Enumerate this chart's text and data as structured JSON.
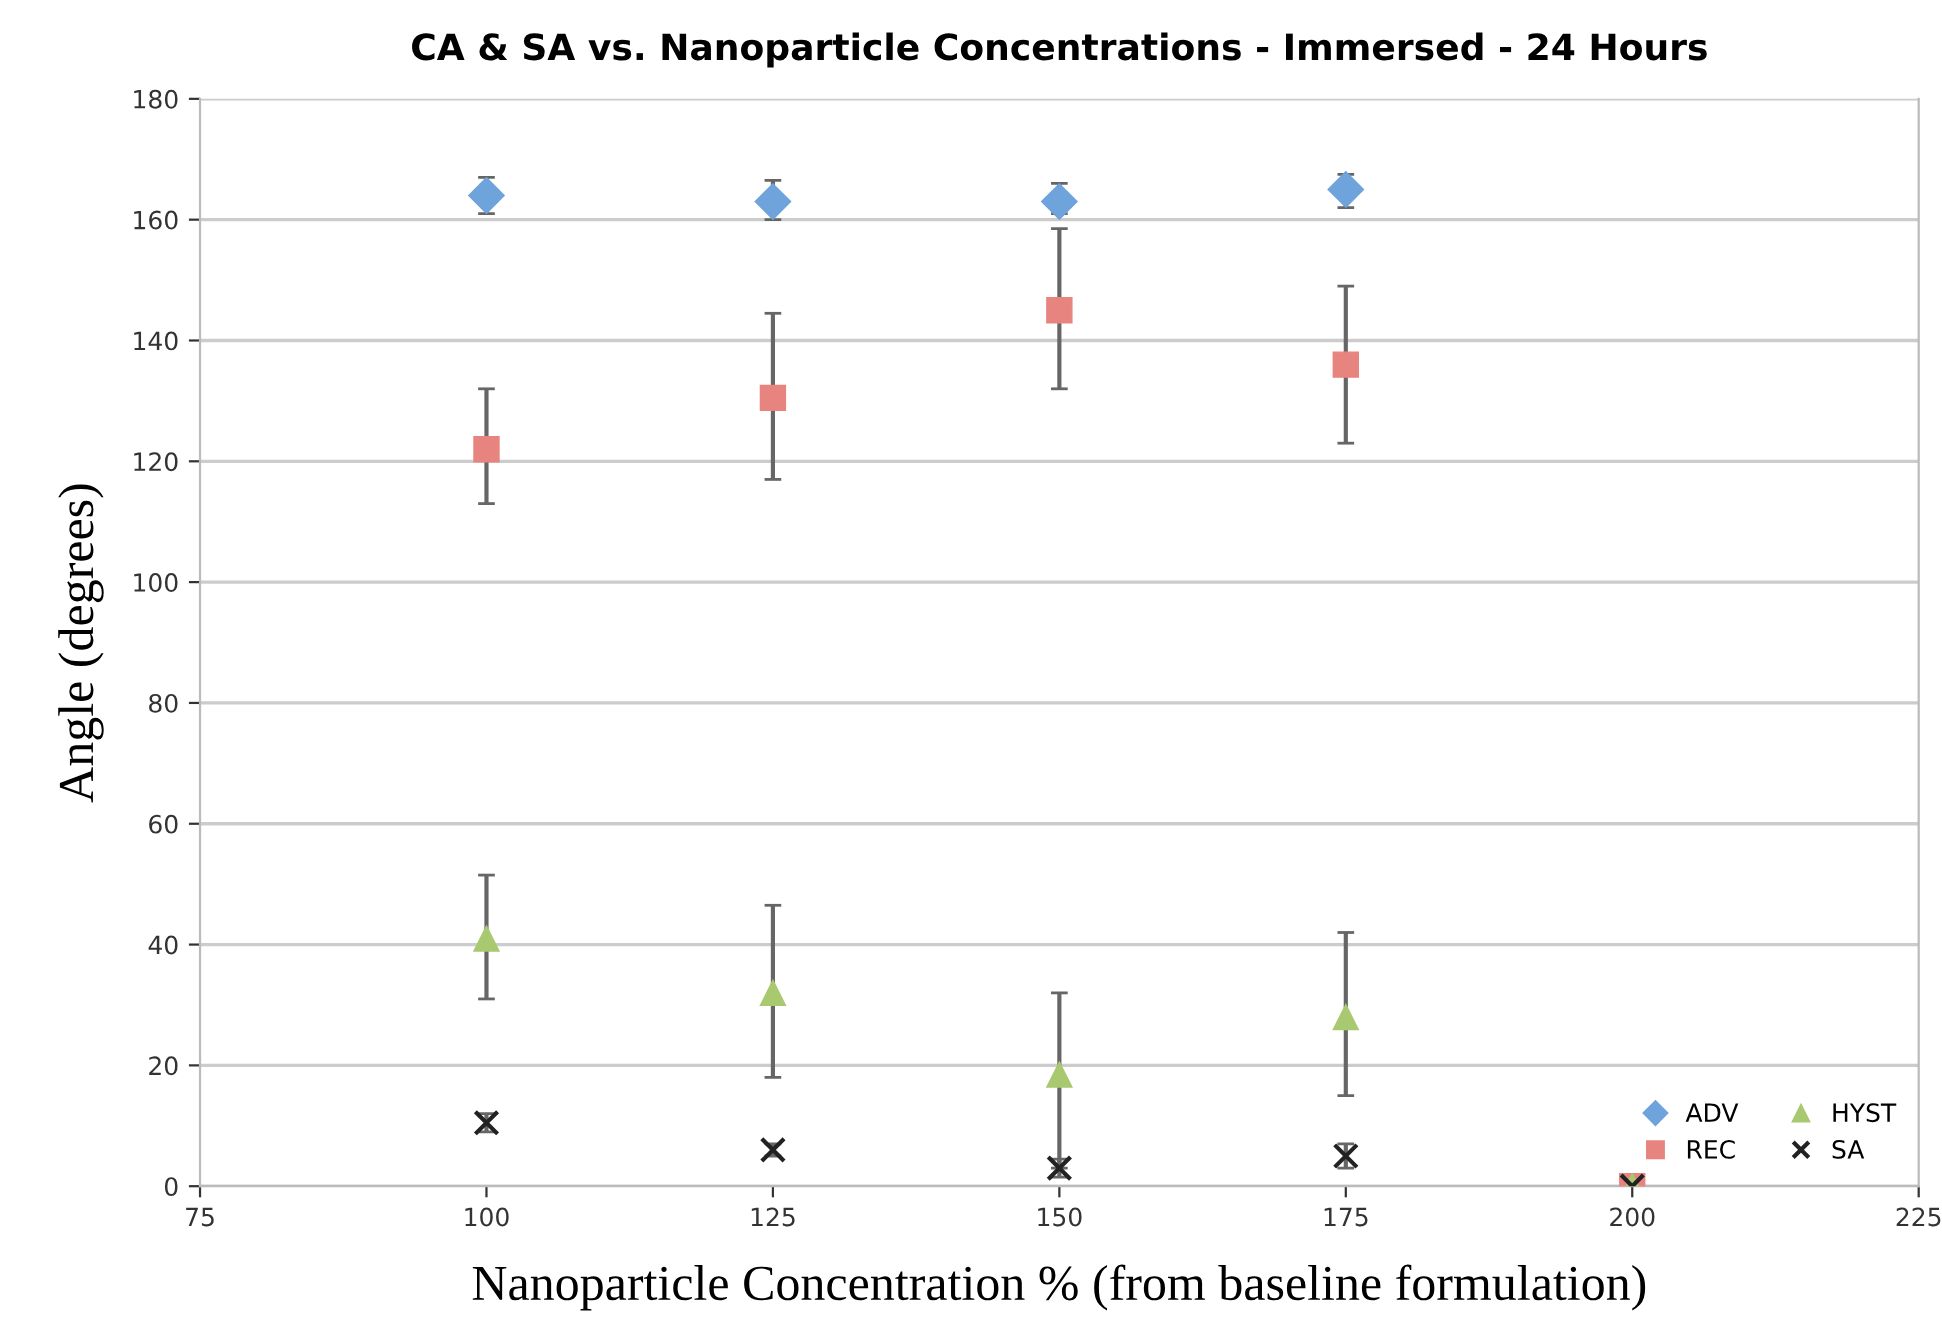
{
  "chart_data": {
    "type": "scatter",
    "title": "CA & SA vs. Nanoparticle Concentrations - Immersed - 24 Hours",
    "xlabel": "Nanoparticle Concentration % (from baseline formulation)",
    "ylabel": "Angle (degrees)",
    "x": [
      100,
      125,
      150,
      175,
      200
    ],
    "series": [
      {
        "name": "ADV",
        "color": "#6fa3dc",
        "marker": "diamond",
        "values": [
          164,
          163,
          163,
          165,
          null
        ],
        "errors": [
          [
            161,
            167
          ],
          [
            160,
            166.5
          ],
          [
            161,
            166
          ],
          [
            162,
            167.5
          ],
          null
        ]
      },
      {
        "name": "REC",
        "color": "#e8847f",
        "marker": "square",
        "values": [
          122,
          130.5,
          145,
          136,
          0
        ],
        "errors": [
          [
            113,
            132
          ],
          [
            117,
            144.5
          ],
          [
            132,
            158.5
          ],
          [
            123,
            149
          ],
          null
        ]
      },
      {
        "name": "HYST",
        "color": "#a8c970",
        "marker": "triangle",
        "values": [
          41,
          32,
          18.5,
          28,
          0
        ],
        "errors": [
          [
            31,
            51.5
          ],
          [
            18,
            46.5
          ],
          [
            3,
            32
          ],
          [
            15,
            42
          ],
          null
        ]
      },
      {
        "name": "SA",
        "color": "#222222",
        "marker": "cross",
        "values": [
          10.5,
          6,
          3,
          5,
          0
        ],
        "errors": [
          [
            9,
            12
          ],
          [
            5,
            7
          ],
          [
            1.5,
            4.5
          ],
          [
            3,
            7
          ],
          null
        ]
      }
    ],
    "xlim": [
      75,
      225
    ],
    "xticks": [
      75,
      100,
      125,
      150,
      175,
      200,
      225
    ],
    "ylim": [
      0,
      180
    ],
    "yticks": [
      0,
      20,
      40,
      60,
      80,
      100,
      120,
      140,
      160,
      180
    ],
    "grid": "y",
    "legend": "bottom right"
  }
}
